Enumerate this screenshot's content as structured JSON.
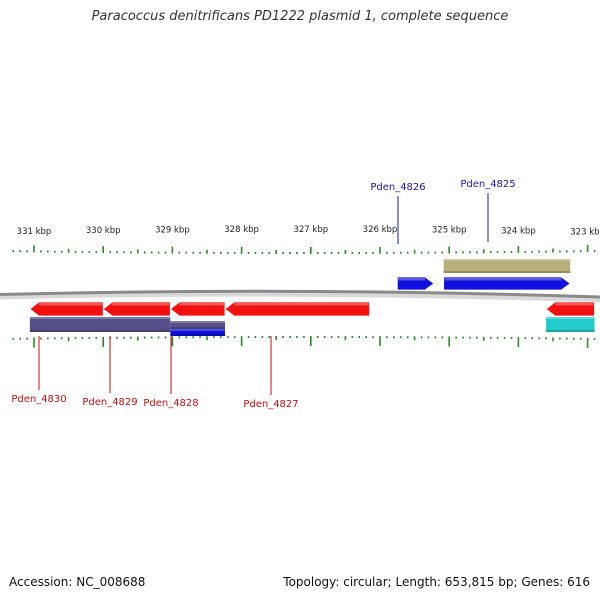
{
  "title": "Paracoccus denitrificans PD1222 plasmid 1, complete sequence",
  "footer": {
    "accession": "Accession: NC_008688",
    "summary": "Topology: circular; Length: 653,815 bp; Genes: 616"
  },
  "colors": {
    "ticks": "#2a8a2a",
    "backbone": "#8a8a8a",
    "forward_gene": "#1010e0",
    "reverse_gene": "#f01010",
    "label_forward": "#1a1aa0",
    "label_reverse": "#c01010",
    "olive_feature": "#b8b07a",
    "purple_feature": "#55508a",
    "cyan_feature": "#22cccc"
  },
  "scale_labels": [
    {
      "label": "331 kbp",
      "kbp": 331
    },
    {
      "label": "330 kbp",
      "kbp": 330
    },
    {
      "label": "329 kbp",
      "kbp": 329
    },
    {
      "label": "328 kbp",
      "kbp": 328
    },
    {
      "label": "327 kbp",
      "kbp": 327
    },
    {
      "label": "326 kbp",
      "kbp": 326
    },
    {
      "label": "325 kbp",
      "kbp": 325
    },
    {
      "label": "324 kbp",
      "kbp": 324
    },
    {
      "label": "323 kbp",
      "kbp": 323
    }
  ],
  "genes": [
    {
      "name": "Pden_4826",
      "strand": "forward",
      "start_kbp": 325.75,
      "end_kbp": 325.22
    },
    {
      "name": "Pden_4825",
      "strand": "forward",
      "start_kbp": 325.08,
      "end_kbp": 323.25
    },
    {
      "name": "Pden_4830",
      "strand": "reverse",
      "start_kbp": 331.06,
      "end_kbp": 330.0
    },
    {
      "name": "Pden_4829",
      "strand": "reverse",
      "start_kbp": 330.0,
      "end_kbp": 329.03
    },
    {
      "name": "Pden_4828",
      "strand": "reverse",
      "start_kbp": 329.03,
      "end_kbp": 328.24
    },
    {
      "name": "Pden_4827",
      "strand": "reverse",
      "start_kbp": 328.24,
      "end_kbp": 326.15
    },
    {
      "name": "",
      "strand": "reverse",
      "start_kbp": 323.6,
      "end_kbp": 322.9
    }
  ],
  "features": [
    {
      "kind": "olive",
      "lane": "outer",
      "start_kbp": 325.08,
      "end_kbp": 323.25
    },
    {
      "kind": "purple",
      "lane": "inner",
      "start_kbp": 331.06,
      "end_kbp": 329.03
    },
    {
      "kind": "purple",
      "lane": "inner",
      "start_kbp": 329.03,
      "end_kbp": 328.24
    },
    {
      "kind": "blue",
      "lane": "inner",
      "start_kbp": 329.03,
      "end_kbp": 328.24
    },
    {
      "kind": "cyan",
      "lane": "inner",
      "start_kbp": 323.6,
      "end_kbp": 322.9
    }
  ]
}
